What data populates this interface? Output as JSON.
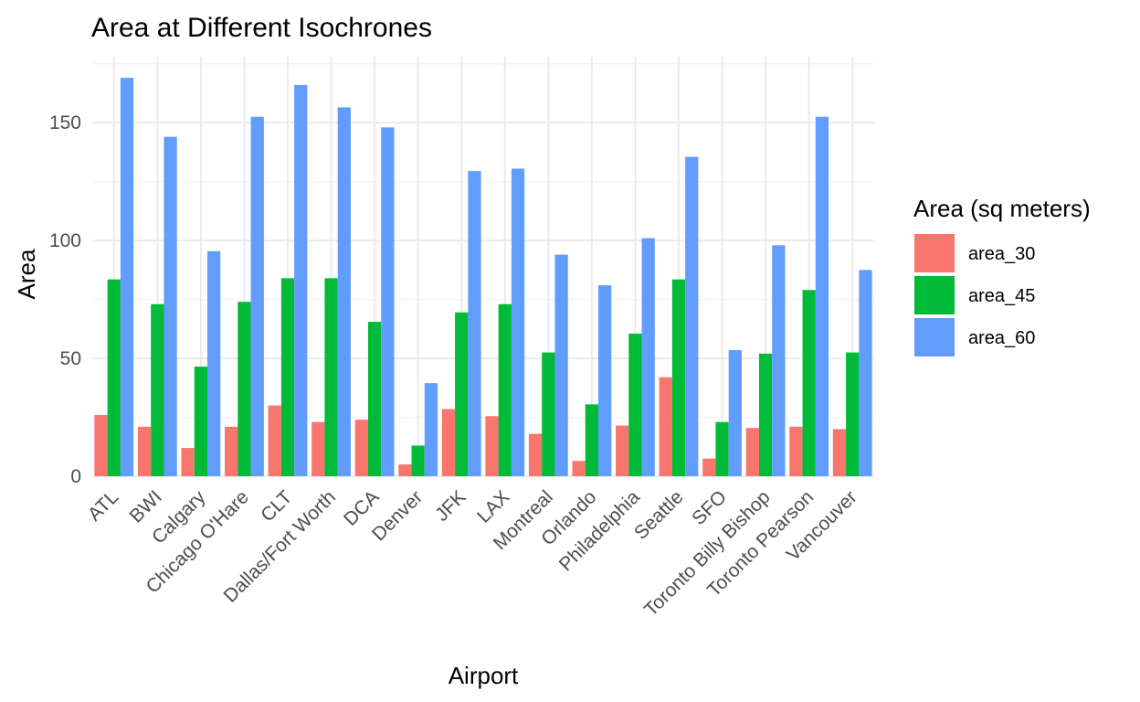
{
  "chart_data": {
    "type": "bar",
    "title": "Area at Different Isochrones",
    "xlabel": "Airport",
    "ylabel": "Area",
    "ylim": [
      0,
      178
    ],
    "yticks": [
      0,
      50,
      100,
      150
    ],
    "grid": true,
    "legend": {
      "title": "Area (sq meters)",
      "position": "right"
    },
    "categories": [
      "ATL",
      "BWI",
      "Calgary",
      "Chicago O'Hare",
      "CLT",
      "Dallas/Fort Worth",
      "DCA",
      "Denver",
      "JFK",
      "LAX",
      "Montreal",
      "Orlando",
      "Philadelphia",
      "Seattle",
      "SFO",
      "Toronto Billy Bishop",
      "Toronto Pearson",
      "Vancouver"
    ],
    "series": [
      {
        "name": "area_30",
        "color": "#F8766D",
        "values": [
          26,
          21,
          12,
          21,
          30,
          23,
          24,
          5,
          28.5,
          25.5,
          18,
          6.5,
          21.5,
          42,
          7.5,
          20.5,
          21,
          20
        ]
      },
      {
        "name": "area_45",
        "color": "#00BA38",
        "values": [
          83.5,
          73,
          46.5,
          74,
          84,
          84,
          65.5,
          13,
          69.5,
          73,
          52.5,
          30.5,
          60.5,
          83.5,
          23,
          52,
          79,
          52.5
        ]
      },
      {
        "name": "area_60",
        "color": "#619CFF",
        "values": [
          169,
          144,
          95.5,
          152.5,
          166,
          156.5,
          148,
          39.5,
          129.5,
          130.5,
          94,
          81,
          101,
          135.5,
          53.5,
          98,
          152.5,
          87.5
        ]
      }
    ]
  }
}
